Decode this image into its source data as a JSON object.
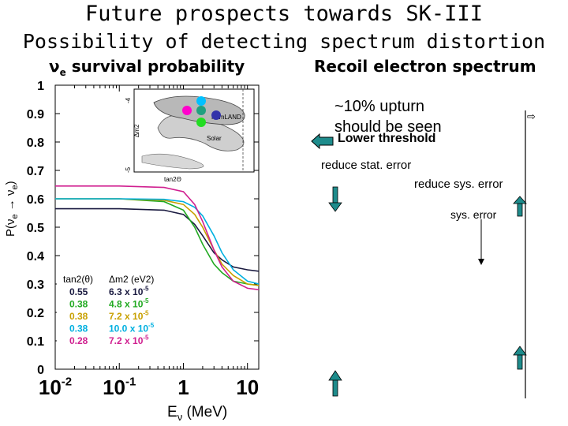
{
  "titles": {
    "main": "Future prospects towards SK-III",
    "sub": "Possibility of detecting spectrum distortion"
  },
  "left_panel": {
    "header_symbol": "ν",
    "header_sub": "e",
    "header_text": "survival probability"
  },
  "right_panel": {
    "header": "Recoil electron spectrum",
    "upturn_line1": "~10% upturn",
    "upturn_line2": "should be seen",
    "lower_threshold": "Lower threshold",
    "reduce_stat": "reduce stat. error",
    "reduce_sys": "reduce sys. error",
    "sys_error": "sys. error"
  },
  "chart_data": {
    "type": "line",
    "xlabel": "Eν (MeV)",
    "ylabel": "P(νe → νe)",
    "x_scale": "log",
    "xlim": [
      0.01,
      15
    ],
    "ylim": [
      0,
      1
    ],
    "x_ticks": [
      {
        "value": 0.01,
        "label": "10-2"
      },
      {
        "value": 0.1,
        "label": "10-1"
      },
      {
        "value": 1,
        "label": "1"
      },
      {
        "value": 10,
        "label": "10"
      }
    ],
    "y_ticks": [
      {
        "value": 0,
        "label": "0"
      },
      {
        "value": 0.1,
        "label": "0.1"
      },
      {
        "value": 0.2,
        "label": "0.2"
      },
      {
        "value": 0.3,
        "label": "0.3"
      },
      {
        "value": 0.4,
        "label": "0.4"
      },
      {
        "value": 0.5,
        "label": "0.5"
      },
      {
        "value": 0.6,
        "label": "0.6"
      },
      {
        "value": 0.7,
        "label": "0.7"
      },
      {
        "value": 0.8,
        "label": "0.8"
      },
      {
        "value": 0.9,
        "label": "0.9"
      },
      {
        "value": 1,
        "label": "1"
      }
    ],
    "legend_headers": [
      "tan2(θ)",
      "Δm2 (eV2)"
    ],
    "series": [
      {
        "tan2": "0.55",
        "dm2": "6.3 x 10-5",
        "color": "#1a1a40",
        "x": [
          0.01,
          0.1,
          0.5,
          1,
          1.5,
          2,
          3,
          4,
          6,
          10,
          15
        ],
        "y": [
          0.565,
          0.565,
          0.56,
          0.545,
          0.51,
          0.47,
          0.41,
          0.385,
          0.36,
          0.35,
          0.345
        ]
      },
      {
        "tan2": "0.38",
        "dm2": "4.8 x 10-5",
        "color": "#22aa22",
        "x": [
          0.01,
          0.1,
          0.5,
          1,
          1.5,
          2,
          3,
          4,
          6,
          10,
          15
        ],
        "y": [
          0.6,
          0.6,
          0.59,
          0.56,
          0.5,
          0.44,
          0.37,
          0.34,
          0.31,
          0.3,
          0.295
        ]
      },
      {
        "tan2": "0.38",
        "dm2": "7.2 x 10-5",
        "color": "#c8a000",
        "x": [
          0.01,
          0.1,
          0.5,
          1,
          1.5,
          2,
          3,
          4,
          6,
          10,
          15
        ],
        "y": [
          0.6,
          0.6,
          0.595,
          0.58,
          0.545,
          0.5,
          0.42,
          0.37,
          0.33,
          0.3,
          0.295
        ]
      },
      {
        "tan2": "0.38",
        "dm2": "10.0 x 10-5",
        "color": "#00b0e0",
        "x": [
          0.01,
          0.1,
          0.5,
          1,
          1.5,
          2,
          3,
          4,
          6,
          10,
          15
        ],
        "y": [
          0.6,
          0.6,
          0.598,
          0.59,
          0.57,
          0.54,
          0.47,
          0.41,
          0.35,
          0.31,
          0.3
        ]
      },
      {
        "tan2": "0.28",
        "dm2": "7.2 x 10-5",
        "color": "#d02090",
        "x": [
          0.01,
          0.1,
          0.5,
          1,
          1.5,
          2,
          3,
          4,
          6,
          10,
          15
        ],
        "y": [
          0.645,
          0.645,
          0.64,
          0.625,
          0.58,
          0.52,
          0.42,
          0.36,
          0.31,
          0.285,
          0.28
        ]
      }
    ]
  },
  "inset": {
    "kamland_label": "KamLAND",
    "solar_label": "Solar",
    "ylabel": "Δm2",
    "xlabel": "tan2Θ",
    "tick_top": "-4",
    "tick_bottom": "-5",
    "dots": [
      {
        "color": "#ff00cc"
      },
      {
        "color": "#00c0ff"
      },
      {
        "color": "#20a080"
      },
      {
        "color": "#22dd22"
      },
      {
        "color": "#3333aa"
      }
    ]
  }
}
